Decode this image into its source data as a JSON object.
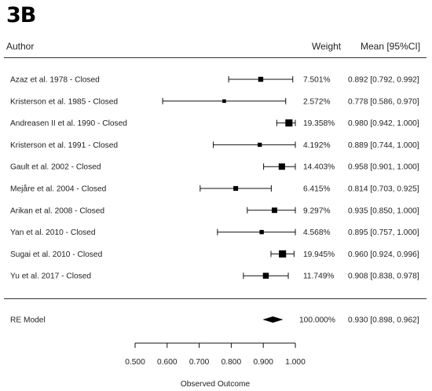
{
  "panel_label": "3B",
  "header": {
    "author": "Author",
    "weight": "Weight",
    "mean": "Mean [95%CI]"
  },
  "chart_data": {
    "type": "forest",
    "xlabel": "Observed Outcome",
    "xlim": [
      0.5,
      1.0
    ],
    "ticks": [
      "0.500",
      "0.600",
      "0.700",
      "0.800",
      "0.900",
      "1.000"
    ],
    "studies": [
      {
        "label": "Azaz et al. 1978  - Closed",
        "weight": "7.501%",
        "ci_text": "0.892 [0.792, 0.992]",
        "mean": 0.892,
        "lower": 0.792,
        "upper": 0.992,
        "w": 7.501
      },
      {
        "label": "Kristerson et al. 1985  - Closed",
        "weight": "2.572%",
        "ci_text": "0.778 [0.586, 0.970]",
        "mean": 0.778,
        "lower": 0.586,
        "upper": 0.97,
        "w": 2.572
      },
      {
        "label": "Andreasen II et al. 1990  - Closed",
        "weight": "19.358%",
        "ci_text": "0.980 [0.942, 1.000]",
        "mean": 0.98,
        "lower": 0.942,
        "upper": 1.0,
        "w": 19.358
      },
      {
        "label": "Kristerson  et al. 1991  - Closed",
        "weight": "4.192%",
        "ci_text": "0.889 [0.744, 1.000]",
        "mean": 0.889,
        "lower": 0.744,
        "upper": 1.0,
        "w": 4.192
      },
      {
        "label": "Gault et al. 2002  - Closed",
        "weight": "14.403%",
        "ci_text": "0.958 [0.901, 1.000]",
        "mean": 0.958,
        "lower": 0.901,
        "upper": 1.0,
        "w": 14.403
      },
      {
        "label": "Mejåre et al. 2004  - Closed",
        "weight": "6.415%",
        "ci_text": "0.814 [0.703, 0.925]",
        "mean": 0.814,
        "lower": 0.703,
        "upper": 0.925,
        "w": 6.415
      },
      {
        "label": "Arikan et al. 2008  - Closed",
        "weight": "9.297%",
        "ci_text": "0.935 [0.850, 1.000]",
        "mean": 0.935,
        "lower": 0.85,
        "upper": 1.0,
        "w": 9.297
      },
      {
        "label": "Yan et al. 2010  - Closed",
        "weight": "4.568%",
        "ci_text": "0.895 [0.757, 1.000]",
        "mean": 0.895,
        "lower": 0.757,
        "upper": 1.0,
        "w": 4.568
      },
      {
        "label": "Sugai et al. 2010  - Closed",
        "weight": "19.945%",
        "ci_text": "0.960 [0.924, 0.996]",
        "mean": 0.96,
        "lower": 0.924,
        "upper": 0.996,
        "w": 19.945
      },
      {
        "label": "Yu et al. 2017  - Closed",
        "weight": "11.749%",
        "ci_text": "0.908 [0.838, 0.978]",
        "mean": 0.908,
        "lower": 0.838,
        "upper": 0.978,
        "w": 11.749
      }
    ],
    "summary": {
      "label": "RE Model",
      "weight": "100.000%",
      "ci_text": "0.930 [0.898, 0.962]",
      "mean": 0.93,
      "lower": 0.898,
      "upper": 0.962
    }
  }
}
